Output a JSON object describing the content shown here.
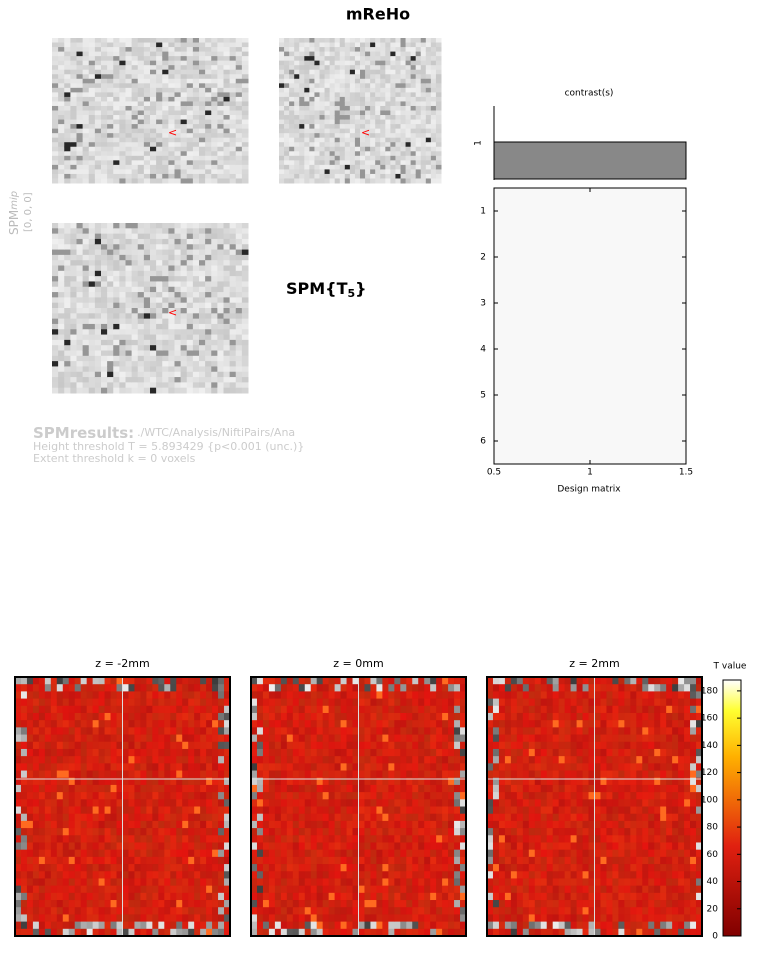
{
  "header": {
    "title": "mReHo"
  },
  "mip": {
    "label_spm": "SPM",
    "label_mip": "mip",
    "coords": "[0, 0, 0]"
  },
  "stat": {
    "main": "SPM{T",
    "sub": "5",
    "close": "}"
  },
  "contrast": {
    "title": "contrast(s)",
    "row_label": "1"
  },
  "design_matrix": {
    "xlabel": "Design matrix",
    "xlim": [
      0.5,
      1.5
    ],
    "xticks": [
      0.5,
      1,
      1.5
    ],
    "ylim": [
      0.5,
      6.5
    ],
    "yticks": [
      1,
      2,
      3,
      4,
      5,
      6
    ]
  },
  "results": {
    "name": "SPMresults:",
    "path": "./WTC/Analysis/NiftiPairs/Ana",
    "height": "Height threshold T = 5.893429  {p<0.001 (unc.)}",
    "extent": "Extent threshold k = 0 voxels"
  },
  "slices": {
    "titles": [
      "z = -2mm",
      "z = 0mm",
      "z = 2mm"
    ]
  },
  "colorbar": {
    "title": "T value",
    "lim": [
      0,
      188
    ],
    "ticks": [
      0,
      20,
      40,
      60,
      80,
      100,
      120,
      140,
      160,
      180
    ]
  }
}
